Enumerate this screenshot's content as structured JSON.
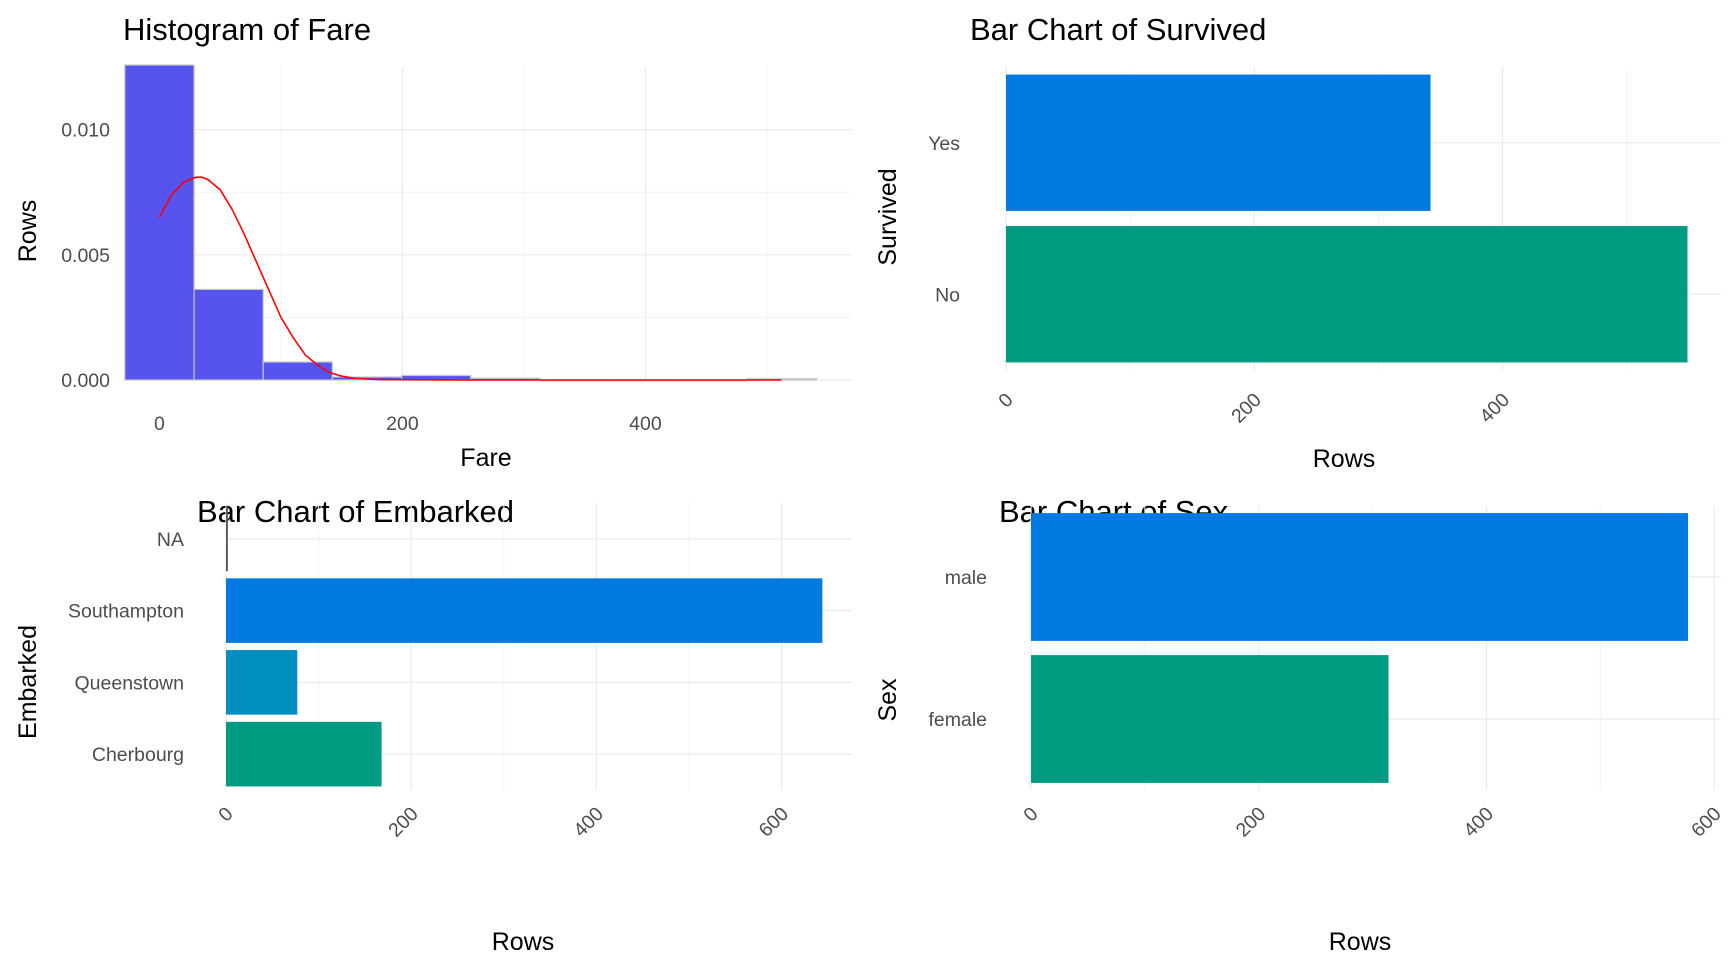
{
  "chart_data": [
    {
      "type": "bar",
      "title": "Histogram of Fare",
      "xlabel": "Fare",
      "ylabel": "Rows",
      "xlim": [
        -30,
        570
      ],
      "ylim": [
        0,
        0.0125
      ],
      "x_ticks": [
        0,
        200,
        400
      ],
      "y_ticks": [
        0.0,
        0.005,
        0.01
      ],
      "y_tick_labels": [
        "0.000",
        "0.005",
        "0.010"
      ],
      "bins": [
        {
          "x0": -28.5,
          "x1": 28.5,
          "density": 0.01258
        },
        {
          "x0": 28.5,
          "x1": 85.4,
          "density": 0.00362
        },
        {
          "x0": 85.4,
          "x1": 142.3,
          "density": 0.00072
        },
        {
          "x0": 142.3,
          "x1": 199.3,
          "density": 0.00012
        },
        {
          "x0": 199.3,
          "x1": 256.2,
          "density": 0.00018
        },
        {
          "x0": 256.2,
          "x1": 313.1,
          "density": 7e-05
        },
        {
          "x0": 313.1,
          "x1": 370.0,
          "density": 0.0
        },
        {
          "x0": 370.0,
          "x1": 426.9,
          "density": 0.0
        },
        {
          "x0": 426.9,
          "x1": 483.8,
          "density": 0.0
        },
        {
          "x0": 483.8,
          "x1": 540.8,
          "density": 5e-05
        }
      ],
      "density_curve": {
        "x": [
          0,
          10,
          20,
          30,
          35,
          40,
          50,
          60,
          70,
          80,
          90,
          100,
          110,
          120,
          130,
          140,
          150,
          160,
          170,
          180,
          200,
          250,
          300,
          400,
          512
        ],
        "y": [
          0.0065,
          0.0074,
          0.0079,
          0.0081,
          0.0081,
          0.008,
          0.0076,
          0.0068,
          0.0058,
          0.0047,
          0.0036,
          0.0025,
          0.0017,
          0.001,
          0.0006,
          0.0003,
          0.00015,
          7e-05,
          4e-05,
          2e-05,
          1e-05,
          0.0,
          0.0,
          0.0,
          0.0
        ]
      },
      "colors": {
        "bar_fill": "#5753ee",
        "bar_border": "#c8c8c8",
        "curve": "#ff0000"
      }
    },
    {
      "type": "bar",
      "orientation": "horizontal",
      "title": "Bar Chart of Survived",
      "xlabel": "Rows",
      "ylabel": "Survived",
      "categories": [
        "No",
        "Yes"
      ],
      "values": [
        549,
        342
      ],
      "xlim": [
        0,
        576
      ],
      "x_ticks": [
        0,
        200,
        400
      ],
      "colors": [
        "#009b80",
        "#007ae0"
      ]
    },
    {
      "type": "bar",
      "orientation": "horizontal",
      "title": "Bar Chart of Embarked",
      "xlabel": "Rows",
      "ylabel": "Embarked",
      "categories": [
        "Cherbourg",
        "Queenstown",
        "Southampton",
        "NA"
      ],
      "values": [
        168,
        77,
        644,
        2
      ],
      "xlim": [
        0,
        676
      ],
      "x_ticks": [
        0,
        200,
        400,
        600
      ],
      "colors": [
        "#009b80",
        "#008fbf",
        "#007ae0",
        "#555555"
      ]
    },
    {
      "type": "bar",
      "orientation": "horizontal",
      "title": "Bar Chart of Sex",
      "xlabel": "Rows",
      "ylabel": "Sex",
      "categories": [
        "female",
        "male"
      ],
      "values": [
        314,
        577
      ],
      "xlim": [
        0,
        606
      ],
      "x_ticks": [
        0,
        200,
        400,
        600
      ],
      "colors": [
        "#009b80",
        "#007ae0"
      ]
    }
  ]
}
